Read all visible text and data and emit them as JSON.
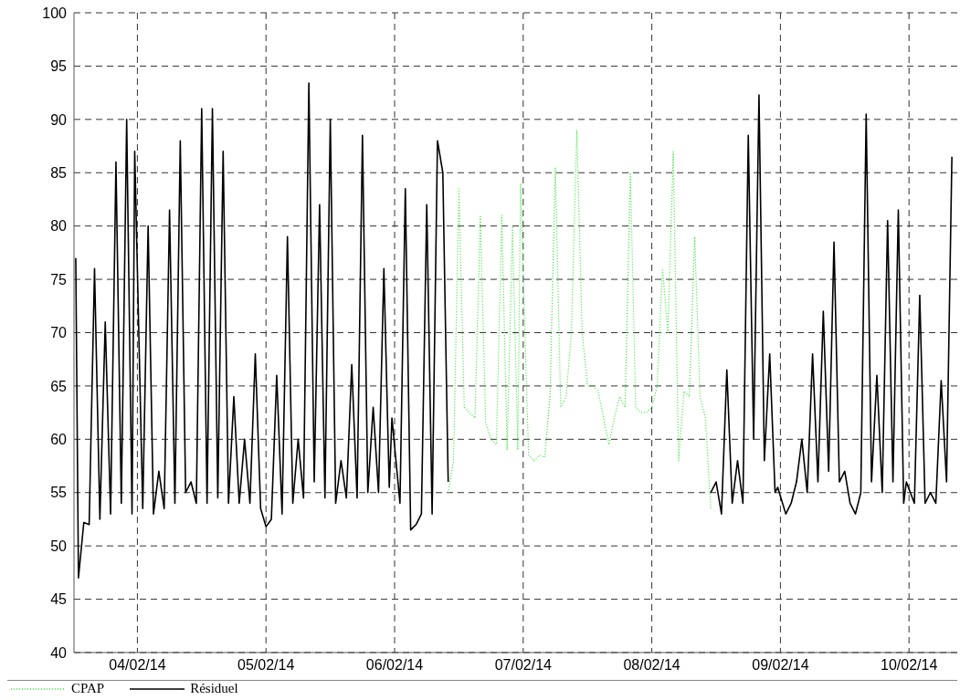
{
  "chart_data": {
    "type": "line",
    "x": [
      "--02-03T12:30",
      "--02-03T13:00",
      "--02-03T14:00",
      "--02-03T15:00",
      "--02-03T16:00",
      "--02-03T17:00",
      "--02-03T18:00",
      "--02-03T19:00",
      "--02-03T20:00",
      "--02-03T21:00",
      "--02-03T22:00",
      "--02-03T23:00",
      "--02-03T23:30",
      "--02-04T01:00",
      "--02-04T02:00",
      "--02-04T03:00",
      "--02-04T04:00",
      "--02-04T05:00",
      "--02-04T06:00",
      "--02-04T07:00",
      "--02-04T08:00",
      "--02-04T09:00",
      "--02-04T10:00",
      "--02-04T11:00",
      "--02-04T12:00",
      "--02-04T13:00",
      "--02-04T14:00",
      "--02-04T15:00",
      "--02-04T16:00",
      "--02-04T17:00",
      "--02-04T18:00",
      "--02-04T19:00",
      "--02-04T20:00",
      "--02-04T21:00",
      "--02-04T22:00",
      "--02-04T23:00",
      "--02-05T00:00",
      "--02-05T01:00",
      "--02-05T02:00",
      "--02-05T03:00",
      "--02-05T04:00",
      "--02-05T05:00",
      "--02-05T06:00",
      "--02-05T07:00",
      "--02-05T08:00",
      "--02-05T09:00",
      "--02-05T10:00",
      "--02-05T11:00",
      "--02-05T12:00",
      "--02-05T13:00",
      "--02-05T14:00",
      "--02-05T15:00",
      "--02-05T16:00",
      "--02-05T17:00",
      "--02-05T18:00",
      "--02-05T19:00",
      "--02-05T20:00",
      "--02-05T21:00",
      "--02-05T22:00",
      "--02-05T23:00",
      "--02-05T23:30",
      "--02-06T01:00",
      "--02-06T02:00",
      "--02-06T03:00",
      "--02-06T04:00",
      "--02-06T05:00",
      "--02-06T06:00",
      "--02-06T07:00",
      "--02-06T08:00",
      "--02-06T09:00",
      "--02-06T10:00",
      "--02-06T11:00",
      "--02-06T12:00",
      "--02-06T13:00",
      "--02-06T14:00",
      "--02-06T15:00",
      "--02-06T16:00",
      "--02-06T17:00",
      "--02-06T18:00",
      "--02-06T19:00",
      "--02-06T20:00",
      "--02-06T21:00",
      "--02-06T22:00",
      "--02-06T23:00",
      "--02-06T23:30",
      "--02-07T01:00",
      "--02-07T02:00",
      "--02-07T03:00",
      "--02-07T04:00",
      "--02-07T05:00",
      "--02-07T06:00",
      "--02-07T07:00",
      "--02-07T08:00",
      "--02-07T09:00",
      "--02-07T10:00",
      "--02-07T11:00",
      "--02-07T12:00",
      "--02-07T13:00",
      "--02-07T14:00",
      "--02-07T15:00",
      "--02-07T16:00",
      "--02-07T17:00",
      "--02-07T18:00",
      "--02-07T19:00",
      "--02-07T20:00",
      "--02-07T21:00",
      "--02-07T22:00",
      "--02-07T23:00",
      "--02-08T00:00",
      "--02-08T01:00",
      "--02-08T02:00",
      "--02-08T03:00",
      "--02-08T04:00",
      "--02-08T05:00",
      "--02-08T06:00",
      "--02-08T07:00",
      "--02-08T08:00",
      "--02-08T09:00",
      "--02-08T10:00",
      "--02-08T11:00",
      "--02-08T12:00",
      "--02-08T13:00",
      "--02-08T14:00",
      "--02-08T15:00",
      "--02-08T16:00",
      "--02-08T17:00",
      "--02-08T18:00",
      "--02-08T19:00",
      "--02-08T20:00",
      "--02-08T21:00",
      "--02-08T22:00",
      "--02-08T23:00",
      "--02-08T23:30",
      "--02-09T01:00",
      "--02-09T02:00",
      "--02-09T03:00",
      "--02-09T04:00",
      "--02-09T05:00",
      "--02-09T06:00",
      "--02-09T07:00",
      "--02-09T08:00",
      "--02-09T09:00",
      "--02-09T10:00",
      "--02-09T11:00",
      "--02-09T12:00",
      "--02-09T13:00",
      "--02-09T14:00",
      "--02-09T15:00",
      "--02-09T16:00",
      "--02-09T17:00",
      "--02-09T18:00",
      "--02-09T19:00",
      "--02-09T20:00",
      "--02-09T21:00",
      "--02-09T22:00",
      "--02-09T23:00",
      "--02-09T23:30",
      "--02-10T01:00",
      "--02-10T02:00",
      "--02-10T03:00",
      "--02-10T04:00",
      "--02-10T05:00",
      "--02-10T06:00",
      "--02-10T07:00",
      "--02-10T08:00"
    ],
    "series": [
      {
        "name": "CPAP",
        "color": "#33e633",
        "line_style": "dotted",
        "values": [
          null,
          null,
          null,
          null,
          null,
          null,
          null,
          null,
          null,
          null,
          null,
          null,
          null,
          null,
          null,
          null,
          null,
          null,
          null,
          null,
          null,
          null,
          null,
          null,
          null,
          null,
          null,
          null,
          null,
          null,
          null,
          null,
          null,
          null,
          null,
          null,
          null,
          null,
          null,
          null,
          null,
          null,
          null,
          null,
          null,
          null,
          null,
          null,
          null,
          null,
          null,
          null,
          null,
          null,
          null,
          null,
          null,
          null,
          null,
          null,
          null,
          null,
          null,
          null,
          null,
          null,
          null,
          null,
          null,
          null,
          55,
          58,
          83.5,
          63,
          62.5,
          62,
          81,
          61.5,
          60,
          59.5,
          81,
          59,
          80,
          59,
          84,
          58.5,
          58,
          58.5,
          58.3,
          64,
          85.5,
          63,
          64,
          70,
          89,
          70,
          65,
          65,
          64.5,
          62,
          59.5,
          62,
          64,
          63,
          85,
          63,
          62.5,
          62.5,
          63,
          65,
          76,
          70,
          87,
          58,
          64.5,
          64,
          79,
          64,
          62,
          53.5,
          null,
          null,
          null,
          null,
          null,
          null,
          null,
          null,
          null,
          null,
          null,
          null,
          null,
          null,
          null,
          null,
          null,
          null,
          null,
          null,
          null,
          null,
          null,
          null,
          null,
          null,
          null,
          null,
          null,
          null,
          null,
          null,
          null,
          null,
          null,
          null,
          null,
          null,
          null,
          null,
          null,
          null,
          null,
          null,
          null
        ]
      },
      {
        "name": "Résiduel",
        "color": "#000000",
        "line_style": "solid",
        "values": [
          77,
          47,
          52.2,
          52,
          76,
          52.5,
          71,
          53,
          86,
          54,
          90,
          53,
          87,
          53.5,
          80,
          53,
          57,
          53.5,
          81.5,
          54,
          88,
          55,
          56,
          54,
          91,
          54,
          91,
          54.5,
          87,
          54,
          64,
          54,
          60,
          54,
          68,
          53.5,
          51.8,
          52.5,
          66,
          53,
          79,
          54,
          60,
          54.5,
          93.4,
          56,
          82,
          54.5,
          90,
          54,
          58,
          54.5,
          67,
          54.5,
          88.5,
          55,
          63,
          55,
          76,
          55.5,
          62,
          54,
          83.5,
          51.5,
          52,
          53,
          82,
          53,
          88,
          85,
          56,
          null,
          null,
          null,
          null,
          null,
          null,
          null,
          null,
          null,
          null,
          null,
          null,
          null,
          null,
          null,
          null,
          null,
          null,
          null,
          null,
          null,
          null,
          null,
          null,
          null,
          null,
          null,
          null,
          null,
          null,
          null,
          null,
          null,
          null,
          null,
          null,
          null,
          null,
          null,
          null,
          null,
          null,
          null,
          null,
          null,
          null,
          null,
          null,
          55,
          56,
          53,
          66.5,
          54,
          58,
          54,
          88.5,
          60,
          92.3,
          58,
          68,
          55,
          55.5,
          53,
          54,
          56,
          60,
          55,
          68,
          56,
          72,
          57,
          78.5,
          56,
          57,
          54,
          53,
          55,
          90.5,
          56,
          66,
          55,
          80.5,
          56,
          81.5,
          54,
          56,
          54,
          73.5,
          54,
          55,
          54,
          65.5,
          56,
          86.5
        ]
      }
    ],
    "xlim": [
      "--02-03T12:10",
      "--02-10T09:00"
    ],
    "xticks": [
      {
        "value": "--02-04",
        "label": "04/02/14"
      },
      {
        "value": "--02-05",
        "label": "05/02/14"
      },
      {
        "value": "--02-06",
        "label": "06/02/14"
      },
      {
        "value": "--02-07",
        "label": "07/02/14"
      },
      {
        "value": "--02-08",
        "label": "08/02/14"
      },
      {
        "value": "--02-09",
        "label": "09/02/14"
      },
      {
        "value": "--02-10",
        "label": "10/02/14"
      }
    ],
    "ylim": [
      40,
      100
    ],
    "yticks": [
      40,
      45,
      50,
      55,
      60,
      65,
      70,
      75,
      80,
      85,
      90,
      95,
      100
    ],
    "grid": true,
    "legend": "bottom left",
    "marker": "none"
  }
}
